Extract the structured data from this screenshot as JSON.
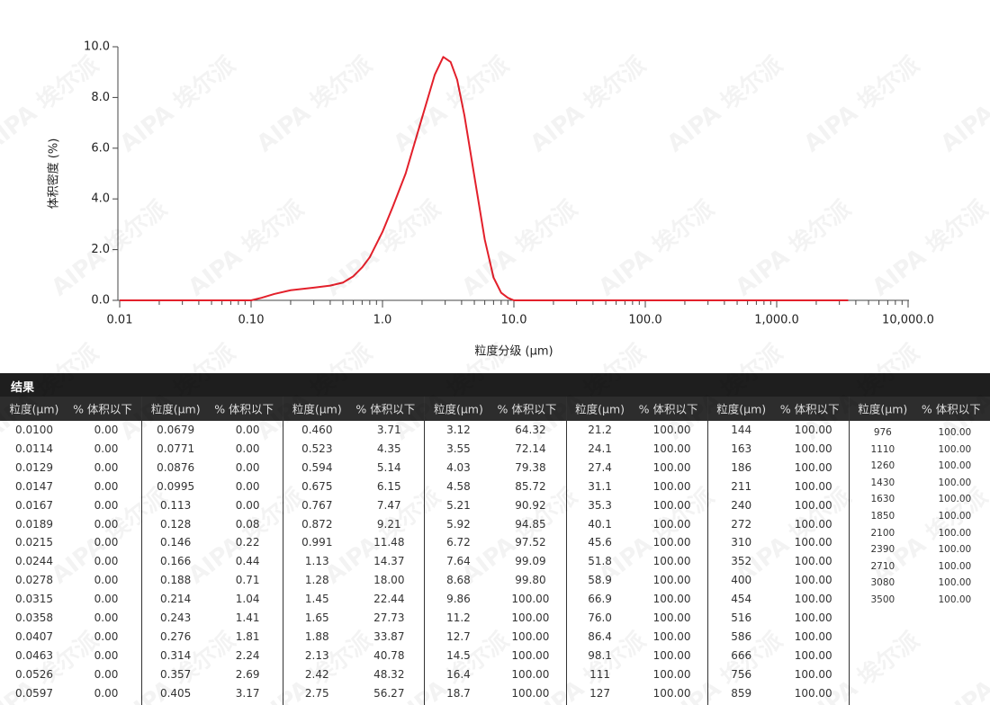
{
  "chart_data": {
    "type": "line",
    "ylabel": "体积密度 (%)",
    "xlabel": "粒度分级 (μm)",
    "x": [
      0.01,
      0.1,
      0.12,
      0.15,
      0.2,
      0.3,
      0.4,
      0.5,
      0.6,
      0.7,
      0.8,
      1.0,
      1.2,
      1.5,
      2.0,
      2.5,
      2.9,
      3.3,
      3.7,
      4.2,
      5.0,
      6.0,
      7.0,
      8.0,
      9.0,
      10,
      100,
      1000,
      3500
    ],
    "values": [
      0,
      0,
      0.1,
      0.25,
      0.4,
      0.5,
      0.58,
      0.7,
      0.95,
      1.3,
      1.7,
      2.7,
      3.7,
      5.0,
      7.2,
      8.9,
      9.6,
      9.4,
      8.7,
      7.3,
      4.9,
      2.4,
      0.9,
      0.3,
      0.1,
      0,
      0,
      0,
      0
    ],
    "color": "#e3202b",
    "xscale": "log",
    "xlim": [
      0.01,
      10000
    ],
    "xticks": [
      0.01,
      {
        "value": 0.1,
        "label": "0.10"
      },
      {
        "value": 1,
        "label": "1.0"
      },
      {
        "value": 10,
        "label": "10.0"
      },
      {
        "value": 100,
        "label": "100.0"
      },
      {
        "value": 1000,
        "label": "1,000.0"
      },
      {
        "value": 10000,
        "label": "10,000.0"
      }
    ],
    "ylim": [
      0,
      10
    ],
    "yticks": [
      {
        "value": 0,
        "label": "0.0"
      },
      {
        "value": 2,
        "label": "2.0"
      },
      {
        "value": 4,
        "label": "4.0"
      },
      {
        "value": 6,
        "label": "6.0"
      },
      {
        "value": 8,
        "label": "8.0"
      },
      {
        "value": 10,
        "label": "10.0"
      }
    ],
    "minor_ticks": true
  },
  "watermark": "AIPA 埃尔派",
  "table": {
    "title": "结果",
    "columns": [
      "粒度(μm)",
      "% 体积以下"
    ],
    "groups": [
      [
        [
          "0.0100",
          "0.00"
        ],
        [
          "0.0114",
          "0.00"
        ],
        [
          "0.0129",
          "0.00"
        ],
        [
          "0.0147",
          "0.00"
        ],
        [
          "0.0167",
          "0.00"
        ],
        [
          "0.0189",
          "0.00"
        ],
        [
          "0.0215",
          "0.00"
        ],
        [
          "0.0244",
          "0.00"
        ],
        [
          "0.0278",
          "0.00"
        ],
        [
          "0.0315",
          "0.00"
        ],
        [
          "0.0358",
          "0.00"
        ],
        [
          "0.0407",
          "0.00"
        ],
        [
          "0.0463",
          "0.00"
        ],
        [
          "0.0526",
          "0.00"
        ],
        [
          "0.0597",
          "0.00"
        ]
      ],
      [
        [
          "0.0679",
          "0.00"
        ],
        [
          "0.0771",
          "0.00"
        ],
        [
          "0.0876",
          "0.00"
        ],
        [
          "0.0995",
          "0.00"
        ],
        [
          "0.113",
          "0.00"
        ],
        [
          "0.128",
          "0.08"
        ],
        [
          "0.146",
          "0.22"
        ],
        [
          "0.166",
          "0.44"
        ],
        [
          "0.188",
          "0.71"
        ],
        [
          "0.214",
          "1.04"
        ],
        [
          "0.243",
          "1.41"
        ],
        [
          "0.276",
          "1.81"
        ],
        [
          "0.314",
          "2.24"
        ],
        [
          "0.357",
          "2.69"
        ],
        [
          "0.405",
          "3.17"
        ]
      ],
      [
        [
          "0.460",
          "3.71"
        ],
        [
          "0.523",
          "4.35"
        ],
        [
          "0.594",
          "5.14"
        ],
        [
          "0.675",
          "6.15"
        ],
        [
          "0.767",
          "7.47"
        ],
        [
          "0.872",
          "9.21"
        ],
        [
          "0.991",
          "11.48"
        ],
        [
          "1.13",
          "14.37"
        ],
        [
          "1.28",
          "18.00"
        ],
        [
          "1.45",
          "22.44"
        ],
        [
          "1.65",
          "27.73"
        ],
        [
          "1.88",
          "33.87"
        ],
        [
          "2.13",
          "40.78"
        ],
        [
          "2.42",
          "48.32"
        ],
        [
          "2.75",
          "56.27"
        ]
      ],
      [
        [
          "3.12",
          "64.32"
        ],
        [
          "3.55",
          "72.14"
        ],
        [
          "4.03",
          "79.38"
        ],
        [
          "4.58",
          "85.72"
        ],
        [
          "5.21",
          "90.92"
        ],
        [
          "5.92",
          "94.85"
        ],
        [
          "6.72",
          "97.52"
        ],
        [
          "7.64",
          "99.09"
        ],
        [
          "8.68",
          "99.80"
        ],
        [
          "9.86",
          "100.00"
        ],
        [
          "11.2",
          "100.00"
        ],
        [
          "12.7",
          "100.00"
        ],
        [
          "14.5",
          "100.00"
        ],
        [
          "16.4",
          "100.00"
        ],
        [
          "18.7",
          "100.00"
        ]
      ],
      [
        [
          "21.2",
          "100.00"
        ],
        [
          "24.1",
          "100.00"
        ],
        [
          "27.4",
          "100.00"
        ],
        [
          "31.1",
          "100.00"
        ],
        [
          "35.3",
          "100.00"
        ],
        [
          "40.1",
          "100.00"
        ],
        [
          "45.6",
          "100.00"
        ],
        [
          "51.8",
          "100.00"
        ],
        [
          "58.9",
          "100.00"
        ],
        [
          "66.9",
          "100.00"
        ],
        [
          "76.0",
          "100.00"
        ],
        [
          "86.4",
          "100.00"
        ],
        [
          "98.1",
          "100.00"
        ],
        [
          "111",
          "100.00"
        ],
        [
          "127",
          "100.00"
        ]
      ],
      [
        [
          "144",
          "100.00"
        ],
        [
          "163",
          "100.00"
        ],
        [
          "186",
          "100.00"
        ],
        [
          "211",
          "100.00"
        ],
        [
          "240",
          "100.00"
        ],
        [
          "272",
          "100.00"
        ],
        [
          "310",
          "100.00"
        ],
        [
          "352",
          "100.00"
        ],
        [
          "400",
          "100.00"
        ],
        [
          "454",
          "100.00"
        ],
        [
          "516",
          "100.00"
        ],
        [
          "586",
          "100.00"
        ],
        [
          "666",
          "100.00"
        ],
        [
          "756",
          "100.00"
        ],
        [
          "859",
          "100.00"
        ]
      ],
      [
        [
          "976",
          "100.00"
        ],
        [
          "1110",
          "100.00"
        ],
        [
          "1260",
          "100.00"
        ],
        [
          "1430",
          "100.00"
        ],
        [
          "1630",
          "100.00"
        ],
        [
          "1850",
          "100.00"
        ],
        [
          "2100",
          "100.00"
        ],
        [
          "2390",
          "100.00"
        ],
        [
          "2710",
          "100.00"
        ],
        [
          "3080",
          "100.00"
        ],
        [
          "3500",
          "100.00"
        ]
      ]
    ]
  }
}
